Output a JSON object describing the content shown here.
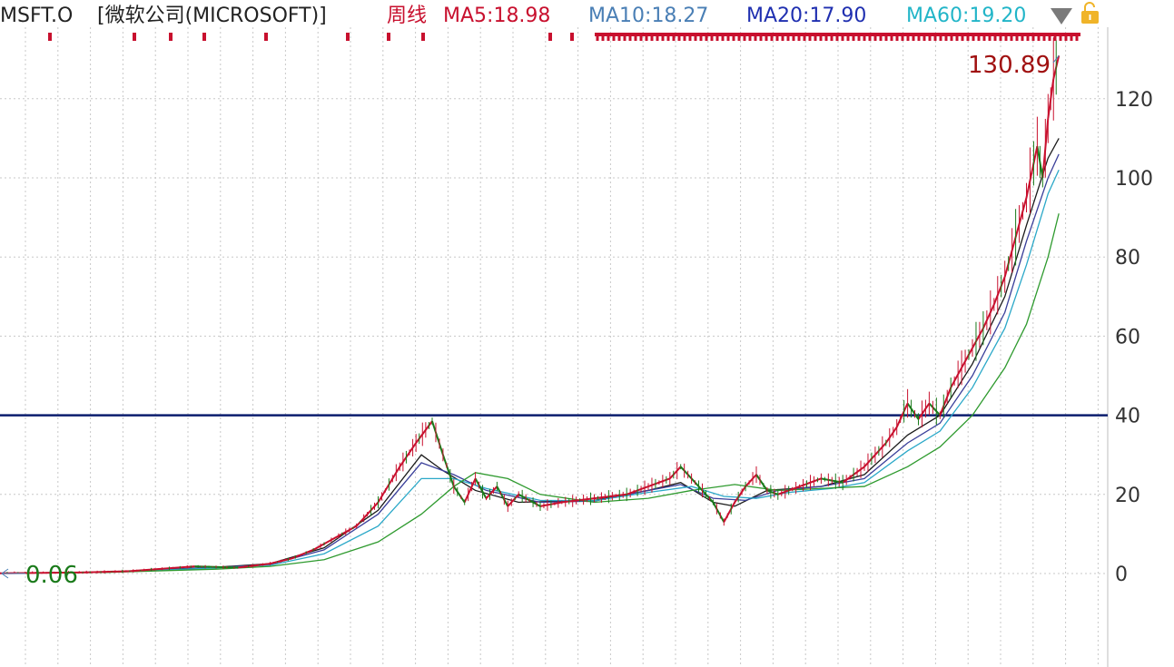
{
  "header": {
    "symbol": "MSFT.O",
    "name": "[微软公司(MICROSOFT)]",
    "period": "周线",
    "ma": [
      {
        "label": "MA5:18.98",
        "color": "#c8102e"
      },
      {
        "label": "MA10:18.27",
        "color": "#4a7fb5"
      },
      {
        "label": "MA20:17.90",
        "color": "#1f2fb0"
      },
      {
        "label": "MA60:19.20",
        "color": "#22b5c8"
      }
    ],
    "dropdown_icon": "triangle-down-icon",
    "lock_icon": "lock-icon"
  },
  "colors": {
    "up": "#c8102e",
    "down": "#1a7a1a",
    "ma5": "#1a1a1a",
    "ma10": "#3a3f9a",
    "ma20": "#2aa8c8",
    "ma60": "#2e9a2e",
    "hline": "#0b1d6e",
    "grid": "#c8c8c8"
  },
  "chart_data": {
    "type": "line",
    "y_ticks": [
      0,
      20,
      40,
      60,
      80,
      100,
      120
    ],
    "ylim": [
      -15,
      135
    ],
    "xlim": [
      0,
      100
    ],
    "horizontal_line": 40,
    "max_label": "130.89",
    "min_label": "0.06",
    "max_value": 130.89,
    "min_value": 0.06,
    "price_series": [
      [
        0,
        0.06
      ],
      [
        8,
        0.3
      ],
      [
        12,
        0.6
      ],
      [
        15,
        1.2
      ],
      [
        18,
        1.8
      ],
      [
        22,
        1.5
      ],
      [
        25,
        2.5
      ],
      [
        27,
        3.8
      ],
      [
        29,
        6
      ],
      [
        31,
        9
      ],
      [
        33,
        12
      ],
      [
        35,
        18
      ],
      [
        37,
        27
      ],
      [
        38.5,
        33
      ],
      [
        40,
        38.5
      ],
      [
        41,
        30
      ],
      [
        42,
        22
      ],
      [
        43,
        18
      ],
      [
        44,
        24
      ],
      [
        45,
        19
      ],
      [
        46,
        22
      ],
      [
        47,
        17
      ],
      [
        48,
        20
      ],
      [
        50,
        17
      ],
      [
        52,
        18
      ],
      [
        55,
        19
      ],
      [
        58,
        20
      ],
      [
        60,
        22
      ],
      [
        62,
        24
      ],
      [
        63,
        27
      ],
      [
        64,
        24
      ],
      [
        65,
        21
      ],
      [
        66,
        18
      ],
      [
        67,
        13
      ],
      [
        68,
        18
      ],
      [
        69,
        22
      ],
      [
        70,
        25
      ],
      [
        71,
        21
      ],
      [
        72,
        20
      ],
      [
        74,
        22
      ],
      [
        76,
        24
      ],
      [
        78,
        23
      ],
      [
        80,
        27
      ],
      [
        81,
        30
      ],
      [
        82,
        33
      ],
      [
        83,
        37
      ],
      [
        84,
        43
      ],
      [
        85,
        39
      ],
      [
        86,
        43
      ],
      [
        87,
        40
      ],
      [
        88,
        47
      ],
      [
        89,
        52
      ],
      [
        90,
        57
      ],
      [
        91,
        62
      ],
      [
        92,
        68
      ],
      [
        93,
        75
      ],
      [
        94,
        85
      ],
      [
        95,
        95
      ],
      [
        96,
        108
      ],
      [
        96.5,
        100
      ],
      [
        97,
        115
      ],
      [
        97.5,
        125
      ],
      [
        98,
        130.89
      ]
    ],
    "ma_series": [
      {
        "values": [
          [
            0,
            0.06
          ],
          [
            10,
            0.4
          ],
          [
            20,
            1.6
          ],
          [
            25,
            2.5
          ],
          [
            30,
            6.5
          ],
          [
            35,
            16
          ],
          [
            39,
            30
          ],
          [
            41,
            26
          ],
          [
            44,
            21
          ],
          [
            48,
            18
          ],
          [
            55,
            18.5
          ],
          [
            60,
            21
          ],
          [
            63,
            23
          ],
          [
            66,
            18
          ],
          [
            68,
            17
          ],
          [
            71,
            21
          ],
          [
            76,
            22
          ],
          [
            80,
            25
          ],
          [
            84,
            35
          ],
          [
            87,
            40
          ],
          [
            90,
            53
          ],
          [
            93,
            70
          ],
          [
            95,
            88
          ],
          [
            97,
            105
          ],
          [
            98,
            110
          ]
        ],
        "color": "#1a1a1a"
      },
      {
        "values": [
          [
            0,
            0.06
          ],
          [
            10,
            0.4
          ],
          [
            20,
            1.5
          ],
          [
            25,
            2.3
          ],
          [
            30,
            6
          ],
          [
            35,
            15
          ],
          [
            39,
            28
          ],
          [
            42,
            25
          ],
          [
            45,
            21
          ],
          [
            50,
            18
          ],
          [
            55,
            18.3
          ],
          [
            60,
            21
          ],
          [
            63,
            22.5
          ],
          [
            66,
            19
          ],
          [
            69,
            18.5
          ],
          [
            72,
            21
          ],
          [
            76,
            22
          ],
          [
            80,
            24
          ],
          [
            84,
            33
          ],
          [
            87,
            38
          ],
          [
            90,
            50
          ],
          [
            93,
            66
          ],
          [
            95,
            84
          ],
          [
            97,
            100
          ],
          [
            98,
            106
          ]
        ],
        "color": "#3a3f9a"
      },
      {
        "values": [
          [
            0,
            0.06
          ],
          [
            10,
            0.35
          ],
          [
            20,
            1.4
          ],
          [
            25,
            2.1
          ],
          [
            30,
            5
          ],
          [
            35,
            12
          ],
          [
            39,
            24
          ],
          [
            42,
            24
          ],
          [
            45,
            21.5
          ],
          [
            50,
            18.5
          ],
          [
            55,
            18.4
          ],
          [
            60,
            20.5
          ],
          [
            64,
            22
          ],
          [
            67,
            19.5
          ],
          [
            70,
            19
          ],
          [
            73,
            20.5
          ],
          [
            77,
            21.5
          ],
          [
            80,
            23
          ],
          [
            84,
            31
          ],
          [
            87,
            36
          ],
          [
            90,
            47
          ],
          [
            93,
            62
          ],
          [
            95,
            78
          ],
          [
            97,
            96
          ],
          [
            98,
            102
          ]
        ],
        "color": "#2aa8c8"
      },
      {
        "values": [
          [
            0,
            0.06
          ],
          [
            10,
            0.3
          ],
          [
            20,
            1.1
          ],
          [
            25,
            1.8
          ],
          [
            30,
            3.5
          ],
          [
            35,
            8
          ],
          [
            39,
            15
          ],
          [
            42,
            22
          ],
          [
            44,
            25.5
          ],
          [
            47,
            24
          ],
          [
            50,
            20
          ],
          [
            55,
            18
          ],
          [
            60,
            19
          ],
          [
            64,
            21
          ],
          [
            68,
            22.5
          ],
          [
            72,
            21
          ],
          [
            76,
            21.5
          ],
          [
            80,
            22
          ],
          [
            84,
            27
          ],
          [
            87,
            32
          ],
          [
            90,
            40
          ],
          [
            93,
            52
          ],
          [
            95,
            63
          ],
          [
            97,
            80
          ],
          [
            98,
            91
          ]
        ],
        "color": "#2e9a2e"
      }
    ]
  }
}
